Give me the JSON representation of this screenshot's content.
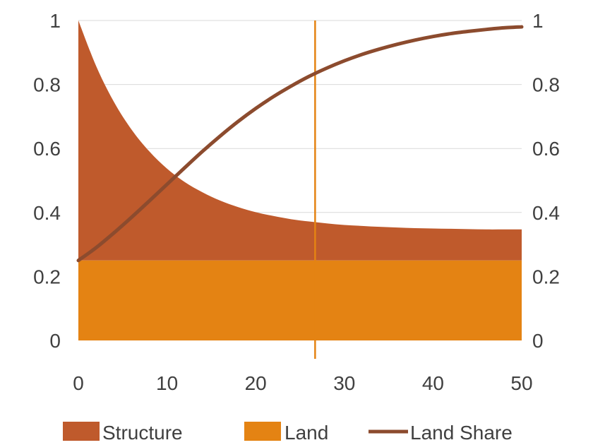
{
  "chart_data": {
    "type": "area",
    "x_axis": {
      "min": 0,
      "max": 50,
      "ticks": [
        0,
        10,
        20,
        30,
        40,
        50
      ],
      "tick_labels": [
        "0",
        "10",
        "20",
        "30",
        "40",
        "50"
      ]
    },
    "y_axis_left": {
      "min": 0,
      "max": 1,
      "ticks": [
        0,
        0.2,
        0.4,
        0.6,
        0.8,
        1
      ],
      "tick_labels": [
        "0",
        "0.2",
        "0.4",
        "0.6",
        "0.8",
        "1"
      ]
    },
    "y_axis_right": {
      "min": 0,
      "max": 1,
      "ticks": [
        0,
        0.2,
        0.4,
        0.6,
        0.8,
        1
      ],
      "tick_labels": [
        "0",
        "0.2",
        "0.4",
        "0.6",
        "0.8",
        "1"
      ]
    },
    "grid": true,
    "legend_position": "bottom",
    "vertical_marker_x": 26.7,
    "x": [
      0,
      2,
      4,
      6,
      8,
      10,
      12,
      14,
      16,
      18,
      20,
      22,
      24,
      26,
      28,
      30,
      32,
      34,
      36,
      38,
      40,
      42,
      44,
      46,
      48,
      50
    ],
    "series": [
      {
        "name": "Structure",
        "kind": "area",
        "color": "#BF5A2C",
        "values": [
          1.0,
          0.858,
          0.746,
          0.659,
          0.591,
          0.537,
          0.495,
          0.463,
          0.437,
          0.417,
          0.401,
          0.389,
          0.379,
          0.372,
          0.366,
          0.361,
          0.358,
          0.355,
          0.353,
          0.351,
          0.35,
          0.349,
          0.348,
          0.347,
          0.347,
          0.347
        ]
      },
      {
        "name": "Land",
        "kind": "area",
        "color": "#E48313",
        "values": [
          0.25,
          0.25,
          0.25,
          0.25,
          0.25,
          0.25,
          0.25,
          0.25,
          0.25,
          0.25,
          0.25,
          0.25,
          0.25,
          0.25,
          0.25,
          0.25,
          0.25,
          0.25,
          0.25,
          0.25,
          0.25,
          0.25,
          0.25,
          0.25,
          0.25,
          0.25
        ]
      },
      {
        "name": "Land Share",
        "kind": "line",
        "color": "#8C4B2E",
        "values": [
          0.25,
          0.29,
          0.336,
          0.385,
          0.436,
          0.488,
          0.54,
          0.591,
          0.639,
          0.684,
          0.725,
          0.762,
          0.795,
          0.825,
          0.851,
          0.874,
          0.894,
          0.911,
          0.926,
          0.939,
          0.95,
          0.959,
          0.966,
          0.972,
          0.977,
          0.98
        ]
      }
    ]
  }
}
